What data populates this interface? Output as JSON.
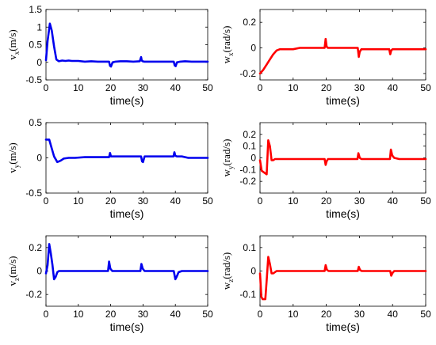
{
  "chart_data": [
    {
      "type": "line",
      "ylabel_main": "v",
      "ylabel_sub": "x",
      "ylabel_unit": "(m/s)",
      "xlabel": "time(s)",
      "xlim": [
        0,
        50
      ],
      "ylim": [
        -0.5,
        1.5
      ],
      "xticks": [
        "0",
        "10",
        "20",
        "30",
        "40",
        "50"
      ],
      "yticks": [
        "-0.5",
        "0",
        "0.5",
        "1",
        "1.5"
      ],
      "ytick_values": [
        -0.5,
        0,
        0.5,
        1,
        1.5
      ],
      "color": "#0000ee",
      "x": [
        0,
        0.5,
        1.2,
        1.8,
        2.5,
        3.2,
        4,
        5,
        6,
        7,
        8,
        10,
        12,
        14,
        16,
        18,
        19.5,
        19.8,
        20.1,
        20.6,
        21.5,
        23,
        25,
        27,
        29,
        29.4,
        29.6,
        29.9,
        30.3,
        31,
        33,
        35,
        37,
        39,
        39.5,
        39.8,
        40.1,
        40.5,
        41.5,
        43,
        45,
        47,
        50
      ],
      "y": [
        0.06,
        0.6,
        1.1,
        0.9,
        0.45,
        0.08,
        0.03,
        0.05,
        0.04,
        0.05,
        0.04,
        0.04,
        0.02,
        0.03,
        0.02,
        0.02,
        0.02,
        -0.1,
        -0.12,
        0.0,
        0.02,
        0.03,
        0.03,
        0.02,
        0.03,
        0.15,
        0.05,
        0.03,
        0.02,
        0.02,
        0.02,
        0.02,
        0.02,
        0.02,
        0.02,
        -0.09,
        -0.11,
        0.0,
        0.02,
        0.03,
        0.02,
        0.02,
        0.02
      ]
    },
    {
      "type": "line",
      "ylabel_main": "w",
      "ylabel_sub": "x",
      "ylabel_unit": "(rad/s)",
      "xlabel": "time(s)",
      "xlim": [
        0,
        50
      ],
      "ylim": [
        -0.25,
        0.3
      ],
      "xticks": [
        "0",
        "10",
        "20",
        "30",
        "40",
        "50"
      ],
      "yticks": [
        "-0.2",
        "0",
        "0.2"
      ],
      "ytick_values": [
        -0.2,
        0,
        0.2
      ],
      "color": "#ff0000",
      "x": [
        0,
        1,
        2,
        3,
        4,
        5,
        6,
        8,
        10,
        12,
        15,
        18,
        19.5,
        19.8,
        20.1,
        20.5,
        22,
        25,
        28,
        29.5,
        29.8,
        30.1,
        30.6,
        32,
        35,
        38,
        39,
        39.3,
        39.6,
        40,
        42,
        45,
        48,
        50
      ],
      "y": [
        -0.2,
        -0.17,
        -0.13,
        -0.09,
        -0.05,
        -0.02,
        -0.01,
        -0.01,
        -0.01,
        0.0,
        0.0,
        0.0,
        0.0,
        0.07,
        0.01,
        0.0,
        0.0,
        0.0,
        0.0,
        0.0,
        -0.07,
        -0.03,
        -0.01,
        -0.01,
        -0.01,
        -0.01,
        -0.01,
        -0.05,
        -0.02,
        -0.01,
        -0.01,
        -0.01,
        -0.01,
        -0.01
      ]
    },
    {
      "type": "line",
      "ylabel_main": "v",
      "ylabel_sub": "y",
      "ylabel_unit": "(m/s)",
      "xlabel": "time(s)",
      "xlim": [
        0,
        50
      ],
      "ylim": [
        -0.5,
        0.5
      ],
      "xticks": [
        "0",
        "10",
        "20",
        "30",
        "40",
        "50"
      ],
      "yticks": [
        "-0.5",
        "0",
        "0.5"
      ],
      "ytick_values": [
        -0.5,
        0,
        0.5
      ],
      "color": "#0000ee",
      "x": [
        0,
        1,
        1.5,
        2.5,
        3.5,
        4.5,
        5.5,
        7,
        9,
        12,
        15,
        18,
        19.5,
        19.8,
        20.1,
        20.5,
        22,
        25,
        28,
        29.4,
        29.7,
        30.0,
        30.5,
        32,
        35,
        38,
        39.4,
        39.7,
        40.0,
        40.5,
        42,
        44,
        47,
        50
      ],
      "y": [
        0.26,
        0.26,
        0.18,
        0.02,
        -0.06,
        -0.04,
        -0.01,
        0.0,
        0.0,
        0.01,
        0.01,
        0.01,
        0.01,
        0.07,
        0.02,
        0.02,
        0.02,
        0.02,
        0.02,
        0.02,
        -0.05,
        -0.06,
        0.02,
        0.02,
        0.02,
        0.02,
        0.02,
        0.08,
        0.03,
        0.02,
        0.02,
        0.0,
        0.0,
        0.0
      ]
    },
    {
      "type": "line",
      "ylabel_main": "w",
      "ylabel_sub": "y",
      "ylabel_unit": "(rad/s)",
      "xlabel": "time(s)",
      "xlim": [
        0,
        50
      ],
      "ylim": [
        -0.3,
        0.3
      ],
      "xticks": [
        "0",
        "10",
        "20",
        "30",
        "40",
        "50"
      ],
      "yticks": [
        "-0.2",
        "-0.1",
        "0",
        "0.1",
        "0.2"
      ],
      "ytick_values": [
        -0.2,
        -0.1,
        0,
        0.1,
        0.2
      ],
      "color": "#ff0000",
      "x": [
        0,
        0.5,
        1,
        1.5,
        2,
        2.5,
        3,
        3.5,
        4,
        4.5,
        5,
        6,
        8,
        10,
        12,
        15,
        18,
        19.5,
        19.8,
        20.1,
        20.5,
        22,
        25,
        28,
        29.4,
        29.7,
        30.1,
        30.6,
        32,
        35,
        38,
        39.2,
        39.5,
        39.9,
        40.5,
        42,
        45,
        48,
        50
      ],
      "y": [
        -0.02,
        -0.11,
        -0.12,
        -0.13,
        -0.14,
        0.15,
        0.1,
        -0.02,
        -0.02,
        -0.01,
        -0.01,
        -0.01,
        -0.01,
        -0.01,
        -0.01,
        -0.01,
        -0.01,
        -0.01,
        -0.06,
        -0.03,
        -0.01,
        -0.01,
        -0.01,
        -0.01,
        -0.01,
        0.04,
        0.0,
        -0.01,
        -0.01,
        -0.01,
        -0.01,
        -0.01,
        0.07,
        0.02,
        0.0,
        -0.01,
        -0.01,
        -0.01,
        -0.01
      ]
    },
    {
      "type": "line",
      "ylabel_main": "v",
      "ylabel_sub": "z",
      "ylabel_unit": "(m/s)",
      "xlabel": "time(s)",
      "xlim": [
        0,
        50
      ],
      "ylim": [
        -0.3,
        0.3
      ],
      "xticks": [
        "0",
        "10",
        "20",
        "30",
        "40",
        "50"
      ],
      "yticks": [
        "-0.2",
        "0",
        "0.2"
      ],
      "ytick_values": [
        -0.2,
        0,
        0.2
      ],
      "color": "#0000ee",
      "x": [
        0,
        0.5,
        1,
        1.5,
        2,
        2.5,
        3,
        3.5,
        4,
        5,
        6,
        8,
        10,
        12,
        15,
        18,
        19.2,
        19.5,
        19.9,
        20.5,
        21.5,
        23,
        25,
        28,
        29.2,
        29.5,
        29.9,
        30.5,
        32,
        35,
        38,
        39.5,
        40,
        40.4,
        41,
        42,
        45,
        48,
        50
      ],
      "y": [
        -0.02,
        0.05,
        0.23,
        0.15,
        0.05,
        -0.07,
        -0.05,
        -0.01,
        0.0,
        0.0,
        0.0,
        0.0,
        0.0,
        0.0,
        0.0,
        0.0,
        0.0,
        0.08,
        0.02,
        0.0,
        0.0,
        0.0,
        0.0,
        0.0,
        0.0,
        0.06,
        0.02,
        0.0,
        0.0,
        0.0,
        0.0,
        0.0,
        -0.07,
        -0.05,
        -0.01,
        0.0,
        0.0,
        0.0,
        0.0
      ]
    },
    {
      "type": "line",
      "ylabel_main": "w",
      "ylabel_sub": "z",
      "ylabel_unit": "(rad/s)",
      "xlabel": "time(s)",
      "xlim": [
        0,
        50
      ],
      "ylim": [
        -0.15,
        0.15
      ],
      "xticks": [
        "0",
        "10",
        "20",
        "30",
        "40",
        "50"
      ],
      "yticks": [
        "-0.1",
        "0",
        "0.1"
      ],
      "ytick_values": [
        -0.1,
        0,
        0.1
      ],
      "color": "#ff0000",
      "x": [
        0,
        0.4,
        0.8,
        1.2,
        1.6,
        2,
        2.5,
        3,
        3.5,
        4,
        5,
        6,
        8,
        10,
        12,
        15,
        18,
        19.5,
        19.8,
        20.2,
        20.7,
        22,
        25,
        28,
        29.5,
        29.8,
        30.2,
        30.7,
        32,
        35,
        38,
        39.3,
        39.6,
        40,
        40.5,
        42,
        45,
        48,
        50
      ],
      "y": [
        -0.01,
        -0.11,
        -0.12,
        -0.12,
        -0.12,
        -0.04,
        0.06,
        0.03,
        -0.01,
        -0.01,
        0.0,
        0.0,
        0.0,
        0.0,
        0.0,
        0.0,
        0.0,
        0.0,
        0.025,
        0.005,
        0.0,
        0.0,
        0.0,
        0.0,
        0.0,
        0.018,
        0.004,
        0.0,
        0.0,
        0.0,
        0.0,
        0.0,
        -0.02,
        -0.008,
        0.0,
        0.0,
        0.0,
        0.0,
        0.0
      ]
    }
  ]
}
